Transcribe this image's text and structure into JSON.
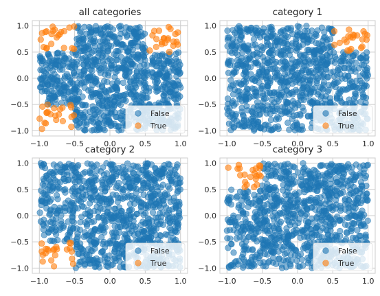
{
  "colors": {
    "false_color": "#1f77b4",
    "true_color": "#ff7f0e",
    "grid": "#cccccc",
    "axes_edge": "#cccccc",
    "legend_bg": "#ffffff"
  },
  "chart_data": [
    {
      "type": "scatter",
      "title": "all categories",
      "xlim": [
        -1.1,
        1.1
      ],
      "ylim": [
        -1.1,
        1.1
      ],
      "xticks": [
        -1.0,
        -0.5,
        0.0,
        0.5,
        1.0
      ],
      "xtick_labels": [
        "−1.0",
        "−0.5",
        "0.0",
        "0.5",
        "1.0"
      ],
      "yticks": [
        -1.0,
        -0.5,
        0.0,
        0.5,
        1.0
      ],
      "ytick_labels": [
        "−1.0",
        "−0.5",
        "0.0",
        "0.5",
        "1.0"
      ],
      "grid": true,
      "legend_placement": "lower-right",
      "series": [
        {
          "name": "False",
          "distribution": "uniform",
          "x_range": [
            -1,
            1
          ],
          "y_range": [
            -1,
            1
          ],
          "count": 950,
          "exclude_regions": [
            [
              -1.0,
              -0.5,
              0.5,
              1.0
            ],
            [
              0.5,
              1.0,
              0.5,
              1.0
            ],
            [
              -1.0,
              -0.5,
              -1.0,
              -0.5
            ]
          ]
        },
        {
          "name": "True",
          "distribution": "clusters",
          "regions": [
            [
              -1.0,
              -0.5,
              0.5,
              1.0
            ],
            [
              0.5,
              1.0,
              0.5,
              1.0
            ],
            [
              -1.0,
              -0.5,
              -1.0,
              -0.5
            ]
          ],
          "count_per_region": 22
        }
      ]
    },
    {
      "type": "scatter",
      "title": "category 1",
      "xlim": [
        -1.1,
        1.1
      ],
      "ylim": [
        -1.1,
        1.1
      ],
      "xticks": [
        -1.0,
        -0.5,
        0.0,
        0.5,
        1.0
      ],
      "xtick_labels": [
        "−1.0",
        "−0.5",
        "0.0",
        "0.5",
        "1.0"
      ],
      "yticks": [
        -1.0,
        -0.5,
        0.0,
        0.5,
        1.0
      ],
      "ytick_labels": [
        "−1.0",
        "−0.5",
        "0.0",
        "0.5",
        "1.0"
      ],
      "grid": true,
      "legend_placement": "lower-right",
      "series": [
        {
          "name": "False",
          "distribution": "uniform",
          "x_range": [
            -1,
            1
          ],
          "y_range": [
            -1,
            1
          ],
          "count": 950,
          "exclude_regions": [
            [
              0.5,
              1.0,
              0.5,
              1.0
            ]
          ]
        },
        {
          "name": "True",
          "distribution": "clusters",
          "regions": [
            [
              0.5,
              1.0,
              0.5,
              1.0
            ]
          ],
          "count_per_region": 22
        }
      ]
    },
    {
      "type": "scatter",
      "title": "category 2",
      "xlim": [
        -1.1,
        1.1
      ],
      "ylim": [
        -1.1,
        1.1
      ],
      "xticks": [
        -1.0,
        -0.5,
        0.0,
        0.5,
        1.0
      ],
      "xtick_labels": [
        "−1.0",
        "−0.5",
        "0.0",
        "0.5",
        "1.0"
      ],
      "yticks": [
        -1.0,
        -0.5,
        0.0,
        0.5,
        1.0
      ],
      "ytick_labels": [
        "−1.0",
        "−0.5",
        "0.0",
        "0.5",
        "1.0"
      ],
      "grid": true,
      "legend_placement": "lower-right",
      "series": [
        {
          "name": "False",
          "distribution": "uniform",
          "x_range": [
            -1,
            1
          ],
          "y_range": [
            -1,
            1
          ],
          "count": 950,
          "exclude_regions": [
            [
              -1.0,
              -0.5,
              -1.0,
              -0.5
            ]
          ]
        },
        {
          "name": "True",
          "distribution": "clusters",
          "regions": [
            [
              -1.0,
              -0.5,
              -1.0,
              -0.5
            ]
          ],
          "count_per_region": 22
        }
      ]
    },
    {
      "type": "scatter",
      "title": "category 3",
      "xlim": [
        -1.1,
        1.1
      ],
      "ylim": [
        -1.1,
        1.1
      ],
      "xticks": [
        -1.0,
        -0.5,
        0.0,
        0.5,
        1.0
      ],
      "xtick_labels": [
        "−1.0",
        "−0.5",
        "0.0",
        "0.5",
        "1.0"
      ],
      "yticks": [
        -1.0,
        -0.5,
        0.0,
        0.5,
        1.0
      ],
      "ytick_labels": [
        "−1.0",
        "−0.5",
        "0.0",
        "0.5",
        "1.0"
      ],
      "grid": true,
      "legend_placement": "lower-right",
      "series": [
        {
          "name": "False",
          "distribution": "uniform",
          "x_range": [
            -1,
            1
          ],
          "y_range": [
            -1,
            1
          ],
          "count": 950,
          "exclude_regions": [
            [
              -1.0,
              -0.5,
              0.5,
              1.0
            ]
          ]
        },
        {
          "name": "True",
          "distribution": "clusters",
          "regions": [
            [
              -1.0,
              -0.5,
              0.5,
              1.0
            ]
          ],
          "count_per_region": 22
        }
      ]
    }
  ]
}
